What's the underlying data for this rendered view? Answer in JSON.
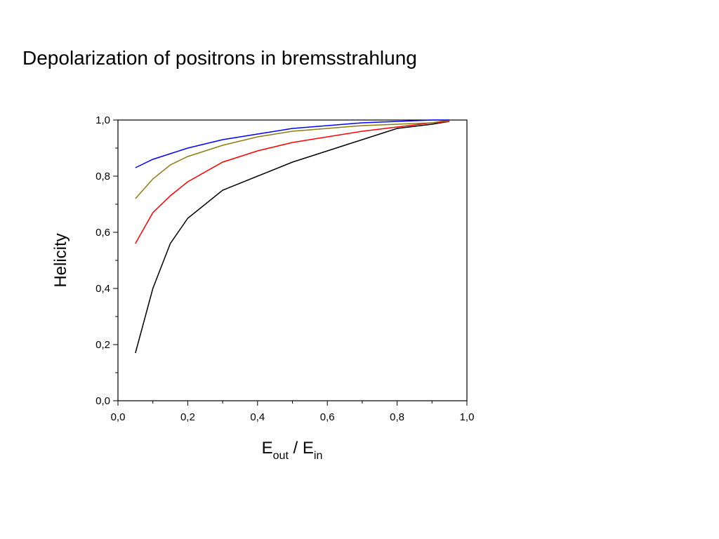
{
  "chart_data": {
    "type": "line",
    "title": "Depolarization of positrons in bremsstrahlung",
    "ylabel": "Helicity",
    "xlabel": [
      {
        "text": "E"
      },
      {
        "text": "out",
        "sub": true
      },
      {
        "text": " / E"
      },
      {
        "text": "in",
        "sub": true
      }
    ],
    "x": [
      0.05,
      0.1,
      0.15,
      0.2,
      0.3,
      0.4,
      0.5,
      0.6,
      0.7,
      0.8,
      0.9,
      0.95
    ],
    "series": [
      {
        "color": "#000000",
        "values": [
          0.17,
          0.4,
          0.56,
          0.65,
          0.75,
          0.8,
          0.85,
          0.89,
          0.93,
          0.97,
          0.985,
          0.995
        ]
      },
      {
        "color": "#ff0000",
        "values": [
          0.56,
          0.67,
          0.73,
          0.78,
          0.85,
          0.89,
          0.92,
          0.94,
          0.96,
          0.975,
          0.99,
          0.995
        ]
      },
      {
        "color": "#8b7d14",
        "values": [
          0.72,
          0.79,
          0.84,
          0.87,
          0.91,
          0.94,
          0.96,
          0.97,
          0.98,
          0.985,
          0.99,
          1.0
        ]
      },
      {
        "color": "#0000ff",
        "values": [
          0.83,
          0.86,
          0.88,
          0.9,
          0.93,
          0.95,
          0.97,
          0.98,
          0.99,
          0.995,
          1.0,
          1.0
        ]
      }
    ],
    "xlim": [
      0,
      1
    ],
    "ylim": [
      0,
      1
    ],
    "xticks": [
      {
        "value": 0,
        "label": "0,0"
      },
      {
        "value": 0.2,
        "label": "0,2"
      },
      {
        "value": 0.4,
        "label": "0,4"
      },
      {
        "value": 0.6,
        "label": "0,6"
      },
      {
        "value": 0.8,
        "label": "0,8"
      },
      {
        "value": 1,
        "label": "1,0"
      }
    ],
    "yticks": [
      {
        "value": 0,
        "label": "0,0"
      },
      {
        "value": 0.2,
        "label": "0,2"
      },
      {
        "value": 0.4,
        "label": "0,4"
      },
      {
        "value": 0.6,
        "label": "0,6"
      },
      {
        "value": 0.8,
        "label": "0,8"
      },
      {
        "value": 1,
        "label": "1,0"
      }
    ],
    "xminorticks": [
      0.1,
      0.3,
      0.5,
      0.7,
      0.9
    ],
    "yminorticks": [
      0.1,
      0.3,
      0.5,
      0.7,
      0.9
    ],
    "grid": false
  }
}
